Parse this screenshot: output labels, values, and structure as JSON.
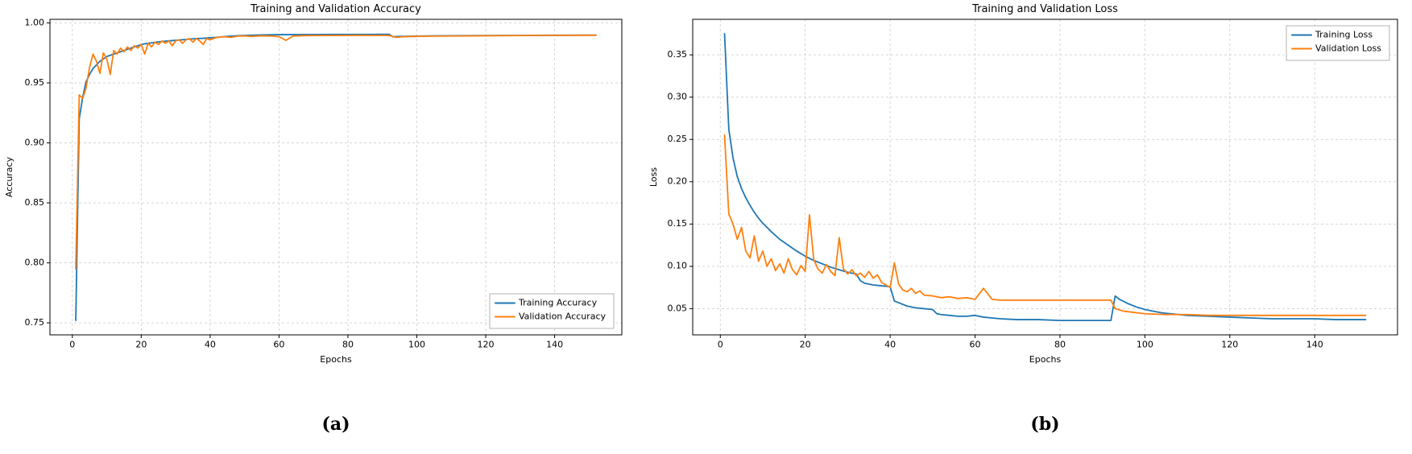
{
  "figure": {
    "caption_a": "(a)",
    "caption_b": "(b)"
  },
  "style": {
    "background": "#ffffff",
    "grid_color": "#cccccc",
    "spine_color": "#000000",
    "text_color": "#000000",
    "legend_border": "#b3b3b3",
    "training_color": "#1f77b4",
    "validation_color": "#ff7f0e"
  },
  "chart_data": [
    {
      "type": "line",
      "title": "Training and Validation Accuracy",
      "xlabel": "Epochs",
      "ylabel": "Accuracy",
      "xlim": [
        -6.5,
        159.5
      ],
      "ylim": [
        0.74,
        1.003
      ],
      "xticks": [
        0,
        20,
        40,
        60,
        80,
        100,
        120,
        140
      ],
      "yticks": [
        0.75,
        0.8,
        0.85,
        0.9,
        0.95,
        1.0
      ],
      "grid": true,
      "legend_loc": "lower right",
      "series": [
        {
          "name": "Training Accuracy",
          "color": "#1f77b4",
          "x": [
            1,
            2,
            3,
            4,
            5,
            6,
            7,
            8,
            9,
            10,
            11,
            12,
            13,
            14,
            15,
            16,
            17,
            18,
            19,
            20,
            22,
            24,
            26,
            28,
            30,
            32,
            34,
            36,
            38,
            40,
            42,
            44,
            46,
            48,
            50,
            55,
            60,
            65,
            70,
            75,
            80,
            85,
            90,
            92,
            93,
            95,
            100,
            105,
            110,
            120,
            130,
            140,
            150,
            152
          ],
          "y": [
            0.752,
            0.92,
            0.938,
            0.951,
            0.957,
            0.962,
            0.965,
            0.968,
            0.97,
            0.972,
            0.973,
            0.974,
            0.975,
            0.976,
            0.977,
            0.978,
            0.979,
            0.98,
            0.981,
            0.982,
            0.983,
            0.9838,
            0.9845,
            0.985,
            0.9855,
            0.986,
            0.9865,
            0.987,
            0.9872,
            0.9876,
            0.988,
            0.9886,
            0.989,
            0.9893,
            0.9896,
            0.99,
            0.9902,
            0.9903,
            0.9903,
            0.9904,
            0.9904,
            0.9904,
            0.9905,
            0.9905,
            0.9885,
            0.9887,
            0.989,
            0.9892,
            0.9893,
            0.9895,
            0.9896,
            0.9897,
            0.9898,
            0.9898
          ]
        },
        {
          "name": "Validation Accuracy",
          "color": "#ff7f0e",
          "x": [
            1,
            2,
            3,
            4,
            5,
            6,
            7,
            8,
            9,
            10,
            11,
            12,
            13,
            14,
            15,
            16,
            17,
            18,
            19,
            20,
            21,
            22,
            23,
            24,
            25,
            26,
            27,
            28,
            29,
            30,
            31,
            32,
            33,
            34,
            35,
            36,
            37,
            38,
            39,
            40,
            42,
            44,
            46,
            48,
            50,
            52,
            55,
            58,
            60,
            62,
            64,
            66,
            70,
            75,
            80,
            85,
            90,
            92,
            94,
            96,
            100,
            105,
            110,
            120,
            130,
            140,
            150,
            152
          ],
          "y": [
            0.795,
            0.94,
            0.937,
            0.946,
            0.963,
            0.974,
            0.968,
            0.958,
            0.975,
            0.97,
            0.957,
            0.977,
            0.974,
            0.979,
            0.976,
            0.98,
            0.977,
            0.981,
            0.979,
            0.982,
            0.974,
            0.983,
            0.98,
            0.984,
            0.982,
            0.985,
            0.983,
            0.985,
            0.981,
            0.985,
            0.986,
            0.983,
            0.986,
            0.987,
            0.984,
            0.987,
            0.985,
            0.982,
            0.987,
            0.986,
            0.988,
            0.9885,
            0.988,
            0.989,
            0.9892,
            0.9888,
            0.9893,
            0.989,
            0.9885,
            0.9855,
            0.989,
            0.9893,
            0.9895,
            0.9895,
            0.9896,
            0.9896,
            0.9896,
            0.9895,
            0.988,
            0.9885,
            0.9888,
            0.989,
            0.9891,
            0.9893,
            0.9895,
            0.9896,
            0.9897,
            0.9897
          ]
        }
      ]
    },
    {
      "type": "line",
      "title": "Training and Validation Loss",
      "xlabel": "Epochs",
      "ylabel": "Loss",
      "xlim": [
        -6.5,
        159.5
      ],
      "ylim": [
        0.019,
        0.392
      ],
      "xticks": [
        0,
        20,
        40,
        60,
        80,
        100,
        120,
        140
      ],
      "yticks": [
        0.05,
        0.1,
        0.15,
        0.2,
        0.25,
        0.3,
        0.35
      ],
      "grid": true,
      "legend_loc": "upper right",
      "series": [
        {
          "name": "Training Loss",
          "color": "#1f77b4",
          "x": [
            1,
            2,
            3,
            4,
            5,
            6,
            7,
            8,
            9,
            10,
            12,
            14,
            16,
            18,
            20,
            22,
            24,
            26,
            28,
            30,
            32,
            33,
            34,
            36,
            38,
            40,
            41,
            42,
            44,
            46,
            48,
            50,
            51,
            52,
            54,
            56,
            58,
            60,
            62,
            64,
            66,
            70,
            75,
            80,
            85,
            90,
            92,
            93,
            94,
            96,
            98,
            100,
            102,
            104,
            106,
            108,
            110,
            115,
            120,
            125,
            130,
            135,
            140,
            145,
            150,
            152
          ],
          "y": [
            0.375,
            0.262,
            0.228,
            0.206,
            0.192,
            0.181,
            0.172,
            0.164,
            0.157,
            0.151,
            0.141,
            0.132,
            0.125,
            0.118,
            0.112,
            0.107,
            0.103,
            0.099,
            0.096,
            0.093,
            0.091,
            0.083,
            0.08,
            0.078,
            0.077,
            0.076,
            0.059,
            0.057,
            0.053,
            0.051,
            0.05,
            0.049,
            0.044,
            0.043,
            0.042,
            0.041,
            0.041,
            0.042,
            0.04,
            0.039,
            0.038,
            0.037,
            0.037,
            0.036,
            0.036,
            0.036,
            0.036,
            0.065,
            0.061,
            0.056,
            0.052,
            0.049,
            0.047,
            0.045,
            0.044,
            0.043,
            0.042,
            0.041,
            0.04,
            0.039,
            0.038,
            0.038,
            0.038,
            0.037,
            0.037,
            0.037
          ]
        },
        {
          "name": "Validation Loss",
          "color": "#ff7f0e",
          "x": [
            1,
            2,
            3,
            4,
            5,
            6,
            7,
            8,
            9,
            10,
            11,
            12,
            13,
            14,
            15,
            16,
            17,
            18,
            19,
            20,
            21,
            22,
            23,
            24,
            25,
            26,
            27,
            28,
            29,
            30,
            31,
            32,
            33,
            34,
            35,
            36,
            37,
            38,
            39,
            40,
            41,
            42,
            43,
            44,
            45,
            46,
            47,
            48,
            50,
            52,
            54,
            56,
            58,
            60,
            62,
            64,
            66,
            70,
            75,
            80,
            85,
            90,
            92,
            93,
            95,
            100,
            105,
            110,
            115,
            120,
            130,
            140,
            150,
            152
          ],
          "y": [
            0.255,
            0.162,
            0.15,
            0.132,
            0.146,
            0.118,
            0.11,
            0.136,
            0.106,
            0.118,
            0.1,
            0.109,
            0.095,
            0.103,
            0.092,
            0.109,
            0.096,
            0.09,
            0.101,
            0.094,
            0.161,
            0.108,
            0.097,
            0.092,
            0.102,
            0.094,
            0.089,
            0.134,
            0.097,
            0.091,
            0.096,
            0.089,
            0.092,
            0.087,
            0.094,
            0.086,
            0.09,
            0.081,
            0.078,
            0.075,
            0.104,
            0.079,
            0.072,
            0.07,
            0.074,
            0.068,
            0.071,
            0.066,
            0.065,
            0.063,
            0.064,
            0.062,
            0.063,
            0.061,
            0.074,
            0.061,
            0.06,
            0.06,
            0.06,
            0.06,
            0.06,
            0.06,
            0.06,
            0.05,
            0.047,
            0.044,
            0.043,
            0.043,
            0.042,
            0.042,
            0.042,
            0.042,
            0.042,
            0.042
          ]
        }
      ]
    }
  ]
}
